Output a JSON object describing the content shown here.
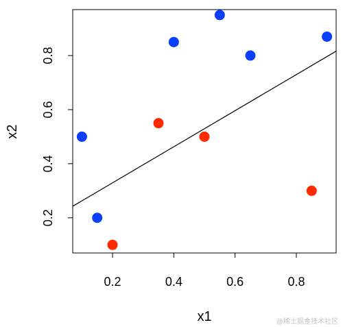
{
  "chart_data": {
    "type": "scatter",
    "title": "",
    "xlabel": "x1",
    "ylabel": "x2",
    "xlim": [
      0.07,
      0.93
    ],
    "ylim": [
      0.07,
      0.97
    ],
    "xticks": [
      0.2,
      0.4,
      0.6,
      0.8
    ],
    "yticks": [
      0.2,
      0.4,
      0.6,
      0.8
    ],
    "grid": false,
    "series": [
      {
        "color": "#0b3fff",
        "points": [
          {
            "x": 0.1,
            "y": 0.5
          },
          {
            "x": 0.15,
            "y": 0.2
          },
          {
            "x": 0.4,
            "y": 0.85
          },
          {
            "x": 0.55,
            "y": 0.95
          },
          {
            "x": 0.65,
            "y": 0.8
          },
          {
            "x": 0.9,
            "y": 0.87
          }
        ]
      },
      {
        "color": "#ff2a00",
        "points": [
          {
            "x": 0.2,
            "y": 0.1
          },
          {
            "x": 0.35,
            "y": 0.55
          },
          {
            "x": 0.5,
            "y": 0.5
          },
          {
            "x": 0.85,
            "y": 0.3
          }
        ]
      }
    ],
    "line": {
      "color": "#000000",
      "intercept": 0.196,
      "slope": 0.667
    }
  },
  "watermark": "@稀土掘金技术社区"
}
